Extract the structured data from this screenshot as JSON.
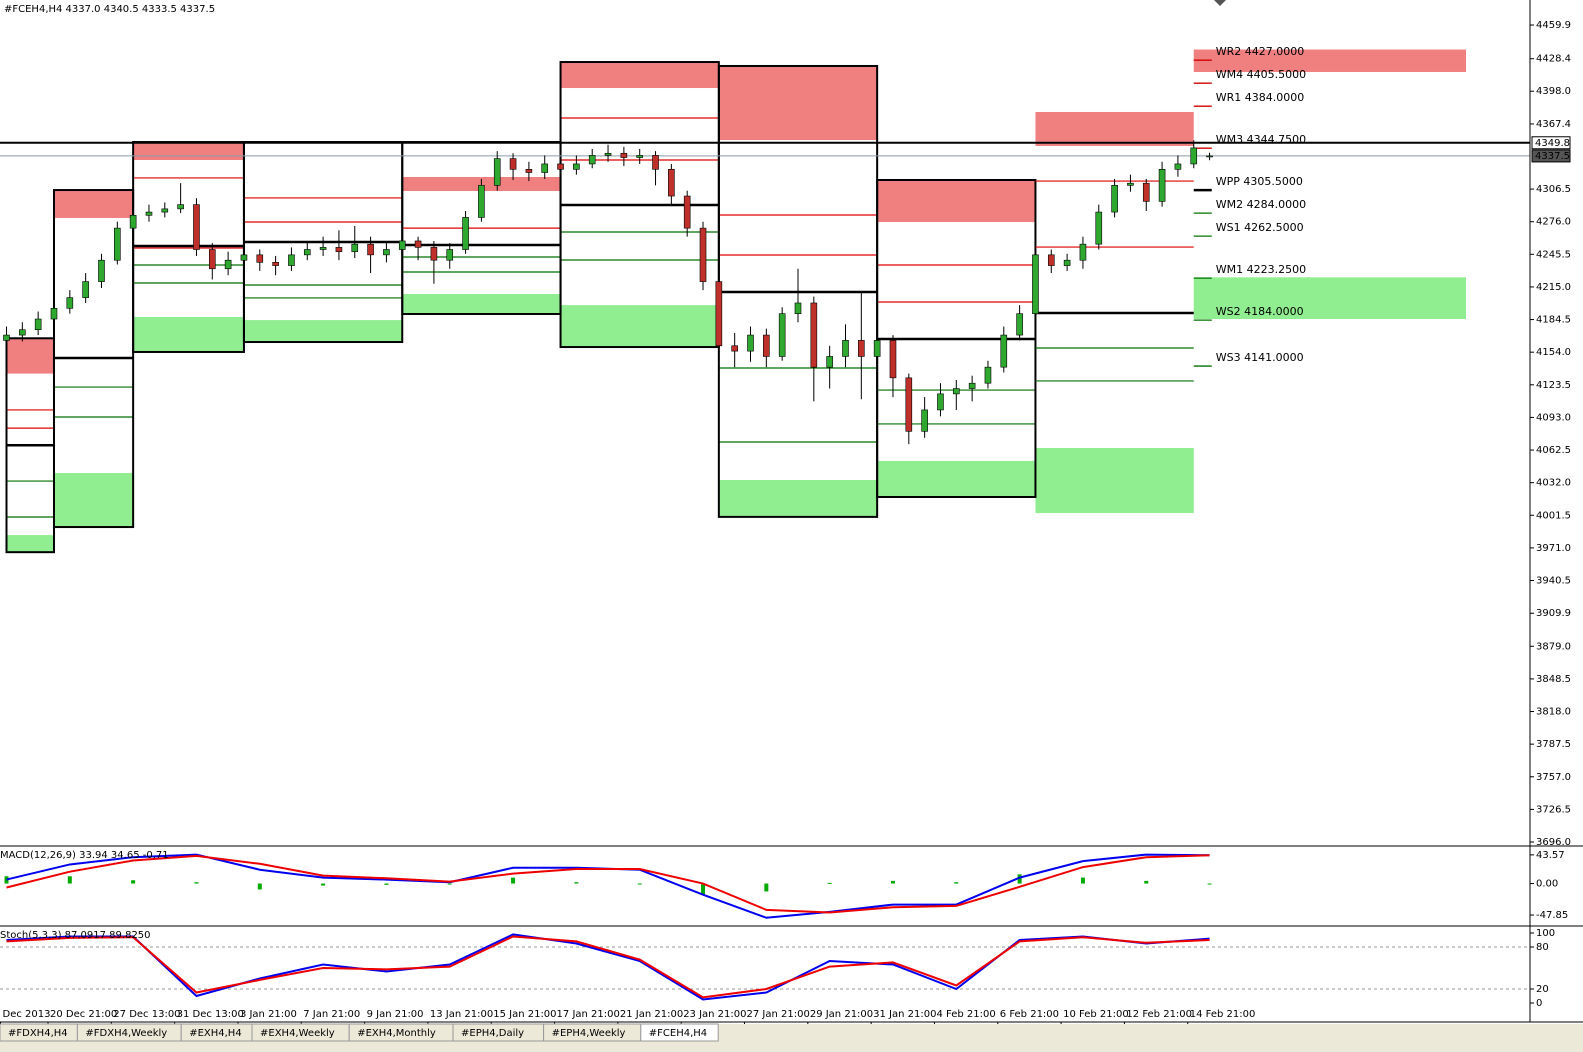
{
  "header": {
    "title": "#FCEH4,H4  4337.0 4340.5 4333.5 4337.5"
  },
  "chart_data": {
    "type": "candlestick",
    "up_color": "#2fa82f",
    "down_color": "#c0302a",
    "categories": [
      "Dec 2013",
      null,
      null,
      "20 Dec 21:00",
      null,
      null,
      null,
      "27 Dec 13:00",
      null,
      null,
      null,
      "31 Dec 13:00",
      null,
      null,
      null,
      "3 Jan 21:00",
      null,
      null,
      null,
      "7 Jan 21:00",
      null,
      null,
      null,
      "9 Jan 21:00",
      null,
      null,
      null,
      "13 Jan 21:00",
      null,
      null,
      null,
      "15 Jan 21:00",
      null,
      null,
      null,
      "17 Jan 21:00",
      null,
      null,
      null,
      "21 Jan 21:00",
      null,
      null,
      null,
      "23 Jan 21:00",
      null,
      null,
      null,
      "27 Jan 21:00",
      null,
      null,
      null,
      "29 Jan 21:00",
      null,
      null,
      null,
      "31 Jan 21:00",
      null,
      null,
      null,
      "4 Feb 21:00",
      null,
      null,
      null,
      "6 Feb 21:00",
      null,
      null,
      null,
      "10 Feb 21:00",
      null,
      null,
      null,
      "12 Feb 21:00",
      null,
      null,
      null,
      "14 Feb 21:00",
      null
    ],
    "candles": [
      [
        4165,
        4178,
        4158,
        4170
      ],
      [
        4170,
        4182,
        4164,
        4175
      ],
      [
        4175,
        4192,
        4170,
        4185
      ],
      [
        4185,
        4200,
        4180,
        4195
      ],
      [
        4195,
        4212,
        4190,
        4205
      ],
      [
        4205,
        4228,
        4200,
        4220
      ],
      [
        4220,
        4246,
        4214,
        4240
      ],
      [
        4240,
        4276,
        4236,
        4270
      ],
      [
        4270,
        4288,
        4265,
        4282
      ],
      [
        4282,
        4292,
        4276,
        4285
      ],
      [
        4285,
        4294,
        4280,
        4288
      ],
      [
        4288,
        4312,
        4284,
        4292
      ],
      [
        4292,
        4298,
        4244,
        4250
      ],
      [
        4250,
        4256,
        4222,
        4232
      ],
      [
        4232,
        4248,
        4226,
        4240
      ],
      [
        4240,
        4252,
        4234,
        4245
      ],
      [
        4245,
        4250,
        4230,
        4238
      ],
      [
        4238,
        4244,
        4226,
        4235
      ],
      [
        4235,
        4252,
        4230,
        4245
      ],
      [
        4245,
        4258,
        4240,
        4250
      ],
      [
        4250,
        4262,
        4244,
        4252
      ],
      [
        4252,
        4268,
        4240,
        4248
      ],
      [
        4248,
        4272,
        4242,
        4255
      ],
      [
        4255,
        4262,
        4228,
        4245
      ],
      [
        4245,
        4258,
        4238,
        4250
      ],
      [
        4250,
        4264,
        4244,
        4258
      ],
      [
        4258,
        4262,
        4240,
        4252
      ],
      [
        4252,
        4258,
        4218,
        4240
      ],
      [
        4240,
        4256,
        4232,
        4250
      ],
      [
        4250,
        4286,
        4246,
        4280
      ],
      [
        4280,
        4316,
        4276,
        4310
      ],
      [
        4310,
        4342,
        4305,
        4335
      ],
      [
        4335,
        4340,
        4315,
        4325
      ],
      [
        4325,
        4332,
        4314,
        4322
      ],
      [
        4322,
        4338,
        4316,
        4330
      ],
      [
        4330,
        4336,
        4318,
        4325
      ],
      [
        4325,
        4338,
        4320,
        4330
      ],
      [
        4330,
        4344,
        4326,
        4338
      ],
      [
        4338,
        4348,
        4332,
        4340
      ],
      [
        4340,
        4346,
        4328,
        4336
      ],
      [
        4336,
        4344,
        4330,
        4338
      ],
      [
        4338,
        4342,
        4310,
        4325
      ],
      [
        4325,
        4330,
        4292,
        4300
      ],
      [
        4300,
        4305,
        4262,
        4270
      ],
      [
        4270,
        4276,
        4212,
        4220
      ],
      [
        4220,
        4224,
        4150,
        4160
      ],
      [
        4160,
        4172,
        4140,
        4155
      ],
      [
        4155,
        4178,
        4145,
        4170
      ],
      [
        4170,
        4176,
        4140,
        4150
      ],
      [
        4150,
        4196,
        4146,
        4190
      ],
      [
        4190,
        4232,
        4182,
        4200
      ],
      [
        4200,
        4206,
        4108,
        4140
      ],
      [
        4140,
        4160,
        4120,
        4150
      ],
      [
        4150,
        4180,
        4140,
        4165
      ],
      [
        4165,
        4210,
        4110,
        4150
      ],
      [
        4150,
        4172,
        4125,
        4165
      ],
      [
        4165,
        4170,
        4112,
        4130
      ],
      [
        4130,
        4134,
        4068,
        4080
      ],
      [
        4080,
        4112,
        4074,
        4100
      ],
      [
        4100,
        4125,
        4094,
        4115
      ],
      [
        4115,
        4128,
        4100,
        4120
      ],
      [
        4120,
        4132,
        4108,
        4125
      ],
      [
        4125,
        4146,
        4120,
        4140
      ],
      [
        4140,
        4178,
        4135,
        4170
      ],
      [
        4170,
        4198,
        4165,
        4190
      ],
      [
        4190,
        4252,
        4184,
        4245
      ],
      [
        4245,
        4250,
        4228,
        4235
      ],
      [
        4235,
        4246,
        4230,
        4240
      ],
      [
        4240,
        4262,
        4232,
        4255
      ],
      [
        4255,
        4292,
        4250,
        4285
      ],
      [
        4285,
        4316,
        4280,
        4310
      ],
      [
        4310,
        4320,
        4304,
        4312
      ],
      [
        4312,
        4316,
        4286,
        4295
      ],
      [
        4295,
        4332,
        4290,
        4325
      ],
      [
        4325,
        4338,
        4318,
        4330
      ],
      [
        4330,
        4352,
        4326,
        4345
      ],
      [
        4337,
        4340.5,
        4333.5,
        4337.5
      ]
    ],
    "ylim": [
      3693.2,
      4483.3
    ],
    "yticks": [
      4459.9,
      4428.4,
      {
        "value": 4398,
        "label": "4398.0"
      },
      4367.4,
      4306.5,
      {
        "value": 4276,
        "label": "4276.0"
      },
      4245.5,
      {
        "value": 4215,
        "label": "4215.0"
      },
      4184.5,
      {
        "value": 4154,
        "label": "4154.0"
      },
      4123.5,
      {
        "value": 4093,
        "label": "4093.0"
      },
      4062.5,
      {
        "value": 4032,
        "label": "4032.0"
      },
      4001.5,
      {
        "value": 3971,
        "label": "3971.0"
      },
      3940.5,
      3909.9,
      {
        "value": 3879,
        "label": "3879.0"
      },
      3848.5,
      {
        "value": 3818,
        "label": "3818.0"
      },
      3787.5,
      {
        "value": 3757,
        "label": "3757.0"
      },
      3726.5,
      {
        "value": 3696,
        "label": "3696.0"
      }
    ],
    "price_markers": [
      4349.8,
      4337.5
    ],
    "zone_colors": {
      "resistance": "#f08080",
      "support": "#90ee90"
    },
    "weeks": [
      {
        "first": 0,
        "last": 2,
        "high": 4167,
        "low": 3967,
        "pivot": 4067,
        "r_zone": [
          4134,
          4167
        ],
        "s_zone": [
          3967,
          3983
        ],
        "r_lines": [
          4100,
          4083
        ],
        "s_lines": [
          4033.5,
          3999.9
        ]
      },
      {
        "first": 3,
        "last": 7,
        "high": 4305.6,
        "low": 3990.5,
        "pivot": 4148.6,
        "r_zone": [
          4279.5,
          4305.6
        ],
        "s_zone": [
          3990.5,
          4041
        ],
        "r_lines": [],
        "s_lines": [
          4121.4,
          4093.4
        ]
      },
      {
        "first": 8,
        "last": 14,
        "high": 4350.5,
        "low": 4154.2,
        "pivot": 4253.3,
        "r_zone": [
          4333.7,
          4350.5
        ],
        "s_zone": [
          4154.2,
          4186.9
        ],
        "r_lines": [
          4316.9,
          4251.4
        ],
        "s_lines": [
          4235.5,
          4218.7
        ]
      },
      {
        "first": 15,
        "last": 24,
        "high": 4350.5,
        "low": 4163.5,
        "pivot": 4257,
        "s_zone": [
          4163.5,
          4184
        ],
        "r_lines": [
          4298.2,
          4275.7
        ],
        "s_lines": [
          4216.8,
          4204.7
        ]
      },
      {
        "first": 25,
        "last": 34,
        "high": 4350.5,
        "low": 4189.7,
        "pivot": 4254.2,
        "r_zone": [
          4304.7,
          4317.8
        ],
        "s_zone": [
          4189.7,
          4208.4
        ],
        "r_lines": [
          4270
        ],
        "s_lines": [
          4243,
          4229
        ]
      },
      {
        "first": 35,
        "last": 44,
        "high": 4425.3,
        "low": 4158.8,
        "pivot": 4291.6,
        "r_zone": [
          4401,
          4425.3
        ],
        "s_zone": [
          4158.8,
          4198
        ],
        "r_lines": [
          4373,
          4333.7
        ],
        "s_lines": [
          4266.4,
          4240.2
        ]
      },
      {
        "first": 45,
        "last": 54,
        "high": 4421.6,
        "low": 4000,
        "pivot": 4210.3,
        "r_zone": [
          4352.4,
          4421.6
        ],
        "s_zone": [
          4000,
          4034.5
        ],
        "r_lines": [
          4282.3,
          4244.9
        ],
        "s_lines": [
          4139.2,
          4070
        ]
      },
      {
        "first": 55,
        "last": 64,
        "high": 4315,
        "low": 4018.6,
        "pivot": 4166.3,
        "r_zone": [
          4275.7,
          4315
        ],
        "s_zone": [
          4018.6,
          4052.3
        ],
        "r_lines": [
          4235.5,
          4200.9
        ],
        "s_lines": [
          4118.6,
          4086.9
        ]
      },
      {
        "first": 65,
        "last": 74,
        "pivot": 4190.6,
        "r_zone": [
          4346.8,
          4378.6
        ],
        "s_zone": [
          4003.6,
          4064.4
        ],
        "r_lines": [
          4314,
          4252.3
        ],
        "s_lines": [
          4157.9,
          4127.1
        ]
      }
    ],
    "current_zones": [
      {
        "kind": "resistance",
        "range": [
          4416,
          4437
        ]
      },
      {
        "kind": "support",
        "range": [
          4185,
          4224
        ]
      }
    ],
    "levels": [
      {
        "label": "WR2 4427.0000",
        "value": 4427,
        "color": "#d00000"
      },
      {
        "label": "WM4 4405.5000",
        "value": 4405.5,
        "color": "#d00000"
      },
      {
        "label": "WR1 4384.0000",
        "value": 4384,
        "color": "#d00000"
      },
      {
        "label": "WM3 4344.7500",
        "value": 4344.75,
        "color": "#d00000"
      },
      {
        "label": "WPP 4305.5000",
        "value": 4305.5,
        "color": "#000000"
      },
      {
        "label": "WM2 4284.0000",
        "value": 4284,
        "color": "#007000"
      },
      {
        "label": "WS1 4262.5000",
        "value": 4262.5,
        "color": "#007000"
      },
      {
        "label": "WM1 4223.2500",
        "value": 4223.25,
        "color": "#007000"
      },
      {
        "label": "WS2 4184.0000",
        "value": 4184,
        "color": "#007000"
      },
      {
        "label": "WS3 4141.0000",
        "value": 4141,
        "color": "#007000"
      }
    ]
  },
  "macd": {
    "title": "MACD(12,26,9) 33.94 34.65 -0.71",
    "ylim": [
      -63,
      54
    ],
    "yticks": [
      43.57,
      {
        "value": 0,
        "label": "0.00"
      },
      -47.85
    ],
    "x": [
      0,
      4,
      8,
      12,
      16,
      20,
      24,
      28,
      32,
      36,
      40,
      44,
      48,
      52,
      56,
      60,
      64,
      68,
      72,
      76
    ],
    "series": [
      {
        "color": "#0000ee",
        "values": [
          6,
          29,
          40,
          44,
          21,
          9,
          6,
          2,
          24,
          24,
          21,
          -17,
          -52,
          -43,
          -32,
          -32,
          9,
          34,
          44,
          43
        ]
      },
      {
        "color": "#ee0000",
        "values": [
          -6,
          18,
          35,
          42,
          30,
          12,
          8,
          3,
          15,
          22,
          22,
          0,
          -40,
          -44,
          -36,
          -34,
          -5,
          25,
          40,
          43
        ]
      }
    ],
    "histogram": {
      "color": "#00aa00",
      "values": [
        11,
        11,
        5,
        2,
        -9,
        -3,
        -2,
        -1,
        9,
        2,
        -1,
        -17,
        -12,
        1,
        4,
        2,
        14,
        9,
        4,
        0
      ]
    }
  },
  "stoch": {
    "title": "Stoch(5,3,3) 87.0917 89.8250",
    "ylim": [
      0,
      100
    ],
    "yticks": [
      100,
      80,
      20,
      0
    ],
    "levels": [
      80,
      20
    ],
    "x": [
      0,
      4,
      8,
      12,
      16,
      20,
      24,
      28,
      32,
      36,
      40,
      44,
      48,
      52,
      56,
      60,
      64,
      68,
      72,
      76
    ],
    "series": [
      {
        "color": "#0000ee",
        "values": [
          90,
          95,
          95,
          10,
          35,
          55,
          45,
          55,
          98,
          85,
          60,
          5,
          15,
          60,
          55,
          20,
          90,
          95,
          85,
          92
        ]
      },
      {
        "color": "#ee0000",
        "values": [
          88,
          93,
          94,
          15,
          33,
          50,
          48,
          52,
          95,
          88,
          62,
          8,
          20,
          52,
          58,
          25,
          88,
          94,
          86,
          90
        ]
      }
    ]
  },
  "tabs": [
    "#FDXH4,H4",
    "#FDXH4,Weekly",
    "#EXH4,H4",
    "#EXH4,Weekly",
    "#EXH4,Monthly",
    "#EPH4,Daily",
    "#EPH4,Weekly",
    "#FCEH4,H4"
  ],
  "active_tab": 7
}
